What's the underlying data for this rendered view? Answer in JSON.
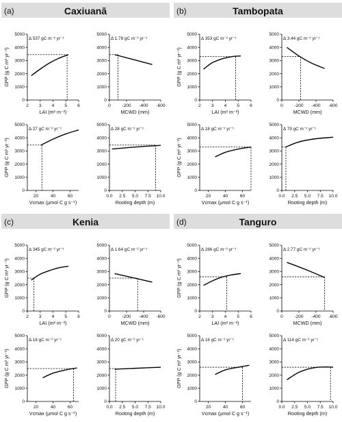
{
  "panels": [
    {
      "letter": "(a)",
      "title": "Caxiuanã",
      "charts": [
        {
          "type": "line",
          "xlabel": "LAI (m² m⁻²)",
          "ylabel": "GPP (g C m² yr⁻¹)",
          "annotation": "Δ 537 gC m⁻² yr⁻¹",
          "xlim": [
            2,
            6
          ],
          "xticks": [
            2,
            3,
            4,
            5,
            6
          ],
          "ylim": [
            0,
            5000
          ],
          "yticks": [
            0,
            1000,
            2000,
            3000,
            4000,
            5000
          ],
          "x": [
            2.3,
            3.0,
            3.7,
            4.4,
            5.2
          ],
          "y": [
            1850,
            2350,
            2800,
            3150,
            3450
          ],
          "ref_x": 5.1,
          "ref_y": 3450
        },
        {
          "type": "line",
          "xlabel": "MCWD (mm)",
          "annotation": "Δ 1.78 gC m⁻² yr⁻¹",
          "xlim": [
            0,
            -600
          ],
          "xticks": [
            0,
            -200,
            -400,
            -600
          ],
          "ylim": [
            0,
            5000
          ],
          "yticks": [
            0,
            1000,
            2000,
            3000,
            4000,
            5000
          ],
          "x": [
            -60,
            -500
          ],
          "y": [
            3450,
            2700
          ],
          "ref_x": -100,
          "ref_y": 3450
        },
        {
          "type": "line",
          "xlabel": "Vcmax (μmol C g s⁻¹)",
          "ylabel": "GPP (g C m² yr⁻¹)",
          "annotation": "Δ 27 gC m⁻² yr⁻¹",
          "xlim": [
            10,
            70
          ],
          "xticks": [
            20,
            40,
            60
          ],
          "ylim": [
            0,
            5000
          ],
          "yticks": [
            0,
            1000,
            2000,
            3000,
            4000,
            5000
          ],
          "x": [
            26,
            40,
            55,
            70
          ],
          "y": [
            3450,
            3900,
            4300,
            4600
          ],
          "ref_x": 27,
          "ref_y": 3450
        },
        {
          "type": "line",
          "xlabel": "Rooting depth (m)",
          "annotation": "Δ 28 gC m⁻² yr⁻¹",
          "xlim": [
            0,
            10
          ],
          "xticks": [
            0.0,
            2.5,
            5.0,
            7.5,
            10.0
          ],
          "ylim": [
            0,
            5000
          ],
          "yticks": [
            0,
            1000,
            2000,
            3000,
            4000,
            5000
          ],
          "x": [
            0.5,
            5,
            10
          ],
          "y": [
            3150,
            3300,
            3430
          ],
          "ref_x": 9,
          "ref_y": 3450
        }
      ]
    },
    {
      "letter": "(b)",
      "title": "Tambopata",
      "charts": [
        {
          "type": "line",
          "xlabel": "LAI (m² m⁻²)",
          "ylabel": "GPP (g C m² yr⁻¹)",
          "annotation": "Δ 353 gC m⁻² yr⁻¹",
          "xlim": [
            2,
            6
          ],
          "xticks": [
            2,
            3,
            4,
            5,
            6
          ],
          "ylim": [
            0,
            5000
          ],
          "yticks": [
            0,
            1000,
            2000,
            3000,
            4000,
            5000
          ],
          "x": [
            2.3,
            3.0,
            3.8,
            4.5,
            5.2
          ],
          "y": [
            2350,
            2850,
            3150,
            3300,
            3350
          ],
          "ref_x": 4.8,
          "ref_y": 3300
        },
        {
          "type": "line",
          "xlabel": "MCWD (mm)",
          "annotation": "Δ 3.44 gC m⁻² yr⁻¹",
          "xlim": [
            0,
            -600
          ],
          "xticks": [
            0,
            -200,
            -400,
            -600
          ],
          "ylim": [
            0,
            5000
          ],
          "yticks": [
            0,
            1000,
            2000,
            3000,
            4000,
            5000
          ],
          "x": [
            -60,
            -200,
            -350,
            -500
          ],
          "y": [
            4000,
            3350,
            2800,
            2400
          ],
          "ref_x": -220,
          "ref_y": 3300
        },
        {
          "type": "line",
          "xlabel": "Vcmax (μmol C g s⁻¹)",
          "ylabel": "GPP (g C m² yr⁻¹)",
          "annotation": "Δ 18 gC m⁻² yr⁻¹",
          "xlim": [
            10,
            70
          ],
          "xticks": [
            20,
            40,
            60
          ],
          "ylim": [
            0,
            5000
          ],
          "yticks": [
            0,
            1000,
            2000,
            3000,
            4000,
            5000
          ],
          "x": [
            28,
            40,
            55,
            70
          ],
          "y": [
            2550,
            2900,
            3150,
            3300
          ],
          "ref_x": 70,
          "ref_y": 3300
        },
        {
          "type": "line",
          "xlabel": "Rooting depth (m)",
          "annotation": "Δ 79 gC m⁻² yr⁻¹",
          "xlim": [
            0,
            10
          ],
          "xticks": [
            0.0,
            2.5,
            5.0,
            7.5,
            10.0
          ],
          "ylim": [
            0,
            5000
          ],
          "yticks": [
            0,
            1000,
            2000,
            3000,
            4000,
            5000
          ],
          "x": [
            0.8,
            3,
            6,
            10
          ],
          "y": [
            3300,
            3650,
            3900,
            4050
          ],
          "ref_x": 0.8,
          "ref_y": 3300
        }
      ]
    },
    {
      "letter": "(c)",
      "title": "Kenia",
      "charts": [
        {
          "type": "line",
          "xlabel": "LAI (m² m⁻²)",
          "ylabel": "GPP (g C m² yr⁻¹)",
          "annotation": "Δ 345 gC m⁻² yr⁻¹",
          "xlim": [
            2,
            6
          ],
          "xticks": [
            2,
            3,
            4,
            5,
            6
          ],
          "ylim": [
            0,
            5000
          ],
          "yticks": [
            0,
            1000,
            2000,
            3000,
            4000,
            5000
          ],
          "x": [
            2.3,
            3.0,
            3.8,
            4.5,
            5.2
          ],
          "y": [
            2350,
            2800,
            3100,
            3300,
            3400
          ],
          "ref_x": 2.5,
          "ref_y": 2500
        },
        {
          "type": "line",
          "xlabel": "MCWD (mm)",
          "annotation": "Δ 1.64 gC m⁻² yr⁻¹",
          "xlim": [
            0,
            -600
          ],
          "xticks": [
            0,
            -200,
            -400,
            -600
          ],
          "ylim": [
            0,
            5000
          ],
          "yticks": [
            0,
            1000,
            2000,
            3000,
            4000,
            5000
          ],
          "x": [
            -60,
            -500
          ],
          "y": [
            2850,
            2200
          ],
          "ref_x": -330,
          "ref_y": 2500
        },
        {
          "type": "line",
          "xlabel": "Vcmax (μmol C g s⁻¹)",
          "ylabel": "GPP (g C m² yr⁻¹)",
          "annotation": "Δ 18 gC m⁻² yr⁻¹",
          "xlim": [
            10,
            70
          ],
          "xticks": [
            20,
            40,
            60
          ],
          "ylim": [
            0,
            5000
          ],
          "yticks": [
            0,
            1000,
            2000,
            3000,
            4000,
            5000
          ],
          "x": [
            28,
            40,
            55,
            68
          ],
          "y": [
            1800,
            2150,
            2400,
            2550
          ],
          "ref_x": 64,
          "ref_y": 2500
        },
        {
          "type": "line",
          "xlabel": "Rooting depth (m)",
          "annotation": "Δ 20 gC m⁻² yr⁻¹",
          "xlim": [
            0,
            10
          ],
          "xticks": [
            0.0,
            2.5,
            5.0,
            7.5,
            10.0
          ],
          "ylim": [
            0,
            5000
          ],
          "yticks": [
            0,
            1000,
            2000,
            3000,
            4000,
            5000
          ],
          "x": [
            1,
            5,
            10
          ],
          "y": [
            2450,
            2520,
            2600
          ],
          "ref_x": 1.2,
          "ref_y": 2500
        }
      ]
    },
    {
      "letter": "(d)",
      "title": "Tanguro",
      "charts": [
        {
          "type": "line",
          "xlabel": "LAI (m² m⁻²)",
          "ylabel": "GPP (g C m² yr⁻¹)",
          "annotation": "Δ 286 gC m⁻² yr⁻¹",
          "xlim": [
            2,
            6
          ],
          "xticks": [
            2,
            3,
            4,
            5,
            6
          ],
          "ylim": [
            0,
            5000
          ],
          "yticks": [
            0,
            1000,
            2000,
            3000,
            4000,
            5000
          ],
          "x": [
            2.3,
            3.0,
            3.8,
            4.5,
            5.2
          ],
          "y": [
            1950,
            2300,
            2600,
            2750,
            2850
          ],
          "ref_x": 4.1,
          "ref_y": 2600
        },
        {
          "type": "line",
          "xlabel": "MCWD (mm)",
          "annotation": "Δ 2.77 gC m⁻² yr⁻¹",
          "xlim": [
            0,
            -600
          ],
          "xticks": [
            0,
            -200,
            -400,
            -600
          ],
          "ylim": [
            0,
            5000
          ],
          "yticks": [
            0,
            1000,
            2000,
            3000,
            4000,
            5000
          ],
          "x": [
            -60,
            -300,
            -500
          ],
          "y": [
            3700,
            3100,
            2550
          ],
          "ref_x": -500,
          "ref_y": 2600
        },
        {
          "type": "line",
          "xlabel": "Vcmax (μmol C g s⁻¹)",
          "ylabel": "GPP (g C m² yr⁻¹)",
          "annotation": "Δ 16 gC m⁻² yr⁻¹",
          "xlim": [
            10,
            70
          ],
          "xticks": [
            20,
            40,
            60
          ],
          "ylim": [
            0,
            5000
          ],
          "yticks": [
            0,
            1000,
            2000,
            3000,
            4000,
            5000
          ],
          "x": [
            28,
            40,
            55,
            68
          ],
          "y": [
            2050,
            2400,
            2600,
            2750
          ],
          "ref_x": 60,
          "ref_y": 2600
        },
        {
          "type": "line",
          "xlabel": "Rooting depth (m)",
          "annotation": "Δ 114 gC m⁻² yr⁻¹",
          "xlim": [
            0,
            10
          ],
          "xticks": [
            0.0,
            2.5,
            5.0,
            7.5,
            10.0
          ],
          "ylim": [
            0,
            5000
          ],
          "yticks": [
            0,
            1000,
            2000,
            3000,
            4000,
            5000
          ],
          "x": [
            1,
            3,
            5,
            7,
            9,
            10
          ],
          "y": [
            1650,
            2150,
            2450,
            2600,
            2620,
            2600
          ],
          "ref_x": 9.5,
          "ref_y": 2600
        }
      ]
    }
  ]
}
